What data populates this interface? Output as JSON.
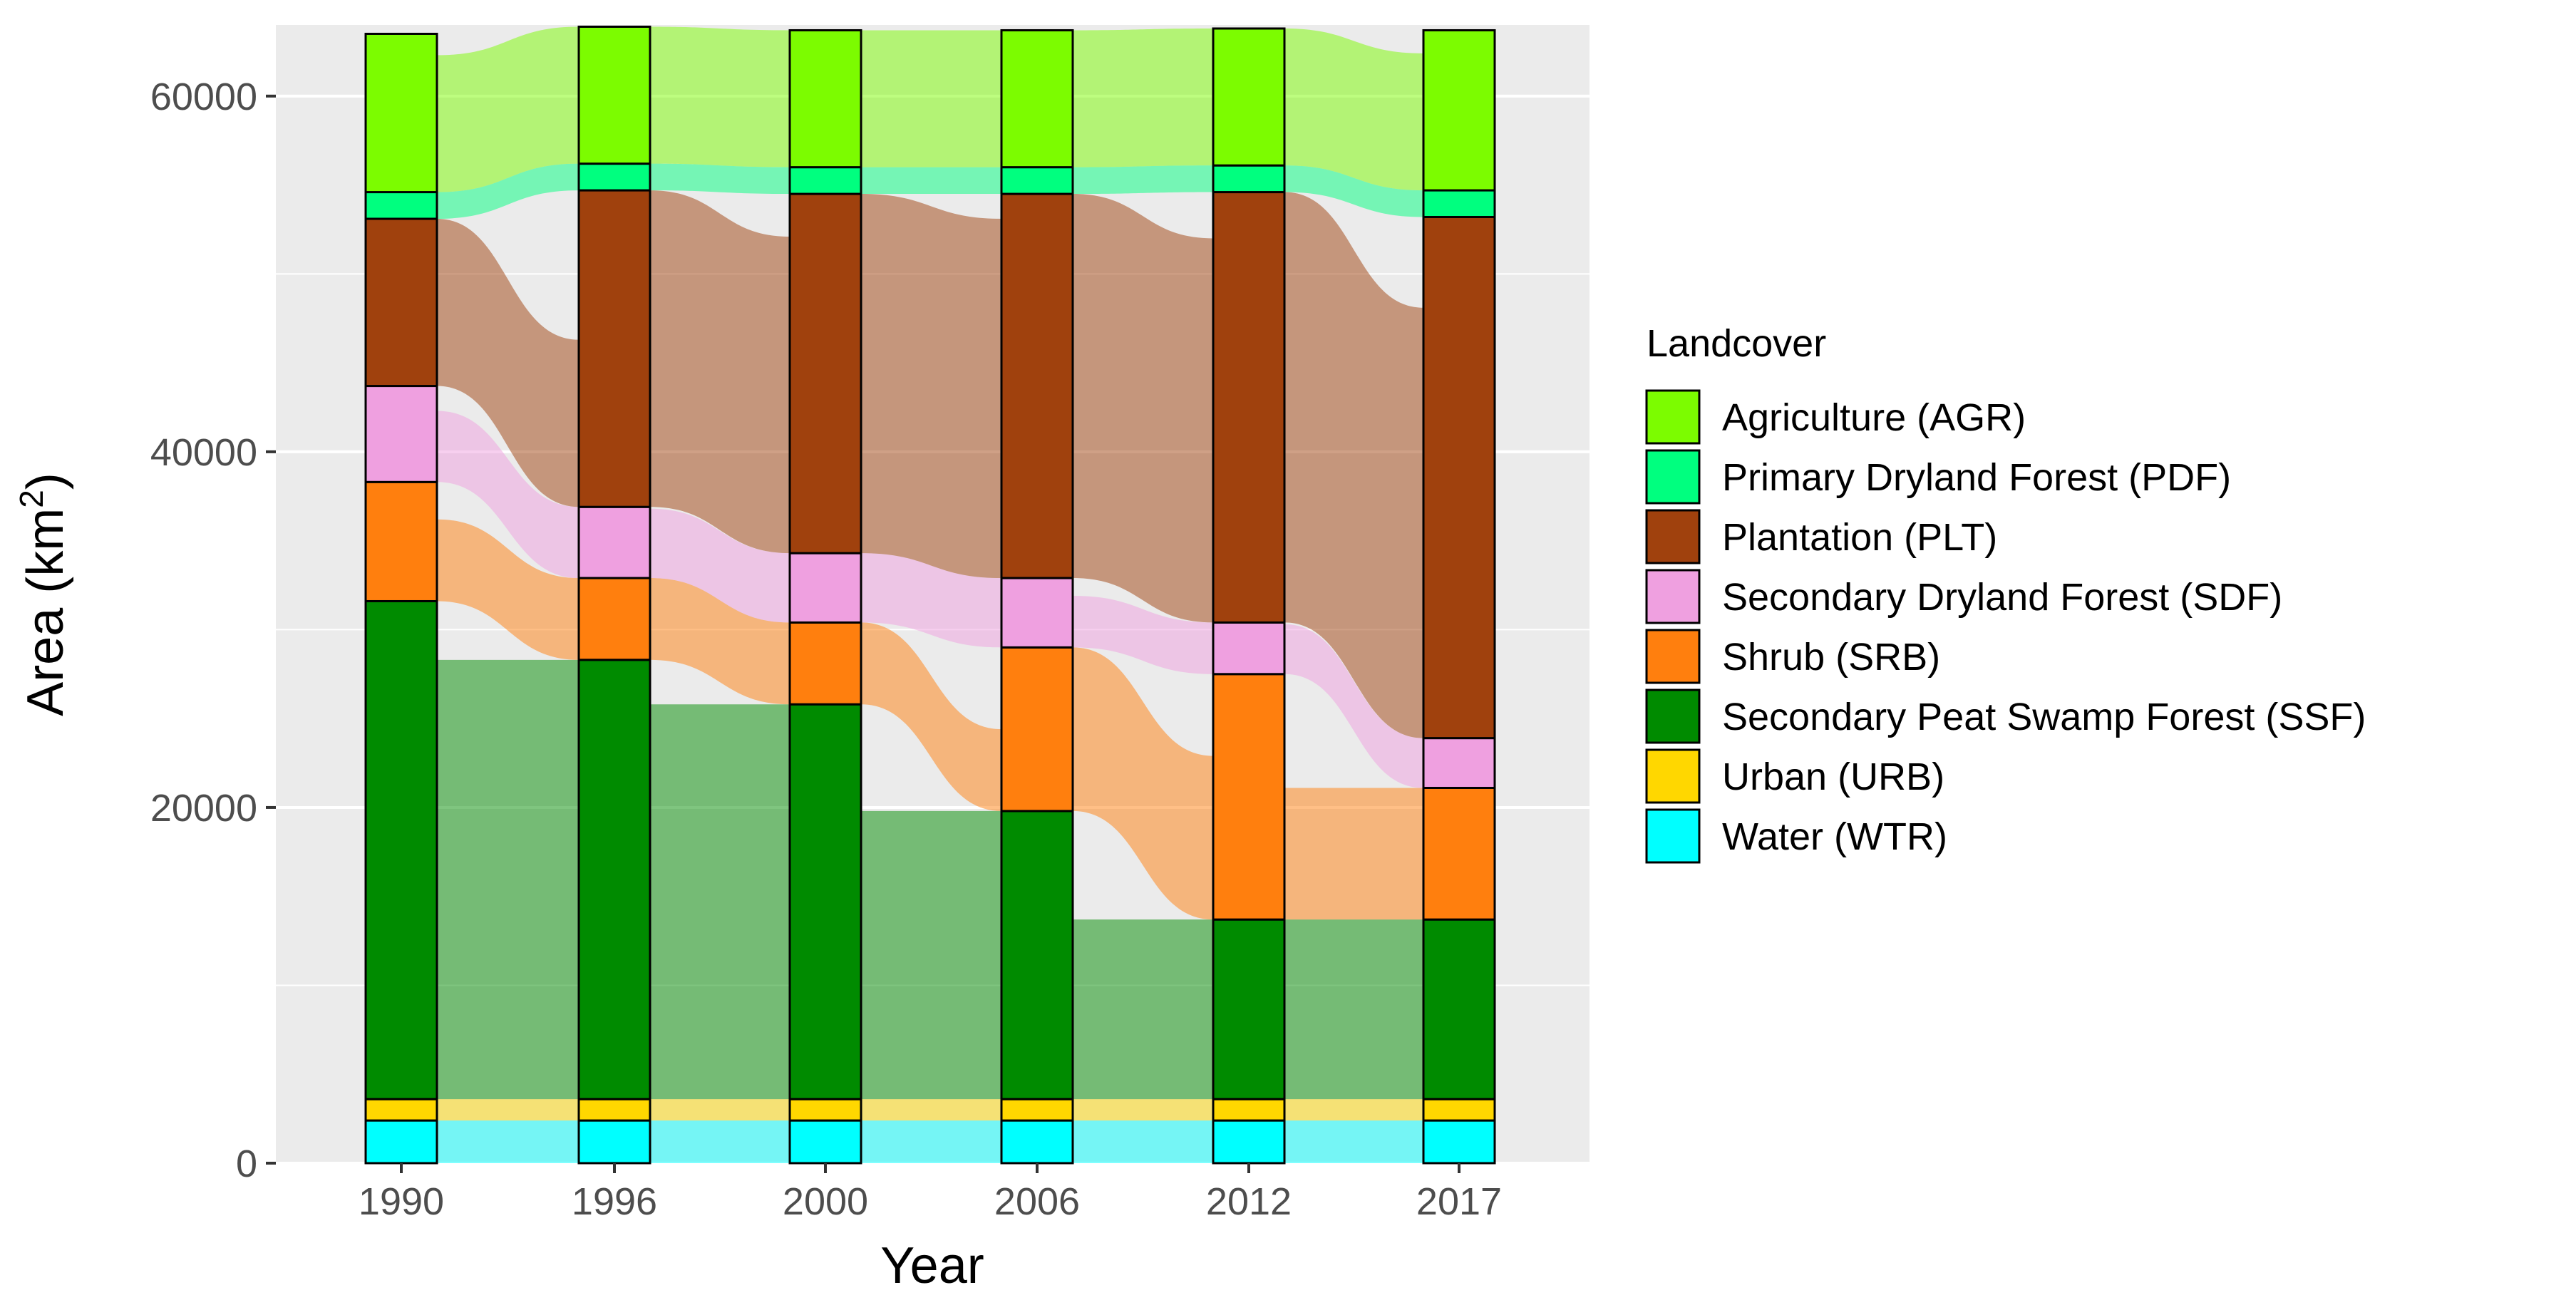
{
  "chart_data": {
    "type": "alluvial",
    "title": "",
    "xlabel": "Year",
    "ylabel": "Area (km",
    "ylabel_sup": "2",
    "ylabel_close": ")",
    "ylim": [
      0,
      64000
    ],
    "yticks": [
      0,
      20000,
      40000,
      60000
    ],
    "grid": true,
    "legend_placement": "right",
    "legend_title": "Landcover",
    "categories": [
      "1990",
      "1996",
      "2000",
      "2006",
      "2012",
      "2017"
    ],
    "stack_order_bottom_to_top": [
      "WTR",
      "URB",
      "SSF",
      "SRB",
      "SDF",
      "PLT",
      "PDF",
      "AGR"
    ],
    "series": [
      {
        "code": "AGR",
        "name": "Agriculture (AGR)",
        "color": "#7CFC00",
        "values": [
          8900,
          7700,
          7700,
          7700,
          7700,
          9000
        ]
      },
      {
        "code": "PDF",
        "name": "Primary Dryland Forest (PDF)",
        "color": "#00FF7F",
        "values": [
          1500,
          1500,
          1500,
          1500,
          1500,
          1500
        ]
      },
      {
        "code": "PLT",
        "name": "Plantation (PLT)",
        "color": "#A0410D",
        "values": [
          9400,
          17800,
          20200,
          21600,
          24200,
          29300
        ]
      },
      {
        "code": "SDF",
        "name": "Secondary Dryland Forest (SDF)",
        "color": "#EFA0E0",
        "values": [
          5400,
          4000,
          3900,
          3900,
          2900,
          2800
        ]
      },
      {
        "code": "SRB",
        "name": "Shrub (SRB)",
        "color": "#FF7F0E",
        "values": [
          6700,
          4600,
          4600,
          9200,
          13800,
          7400
        ]
      },
      {
        "code": "SSF",
        "name": "Secondary Peat Swamp Forest (SSF)",
        "color": "#008B00",
        "values": [
          28000,
          24700,
          22200,
          16200,
          10100,
          10100
        ]
      },
      {
        "code": "URB",
        "name": "Urban (URB)",
        "color": "#FFD700",
        "values": [
          1200,
          1200,
          1200,
          1200,
          1200,
          1200
        ]
      },
      {
        "code": "WTR",
        "name": "Water (WTR)",
        "color": "#00FFFF",
        "values": [
          2400,
          2400,
          2400,
          2400,
          2400,
          2400
        ]
      }
    ]
  }
}
